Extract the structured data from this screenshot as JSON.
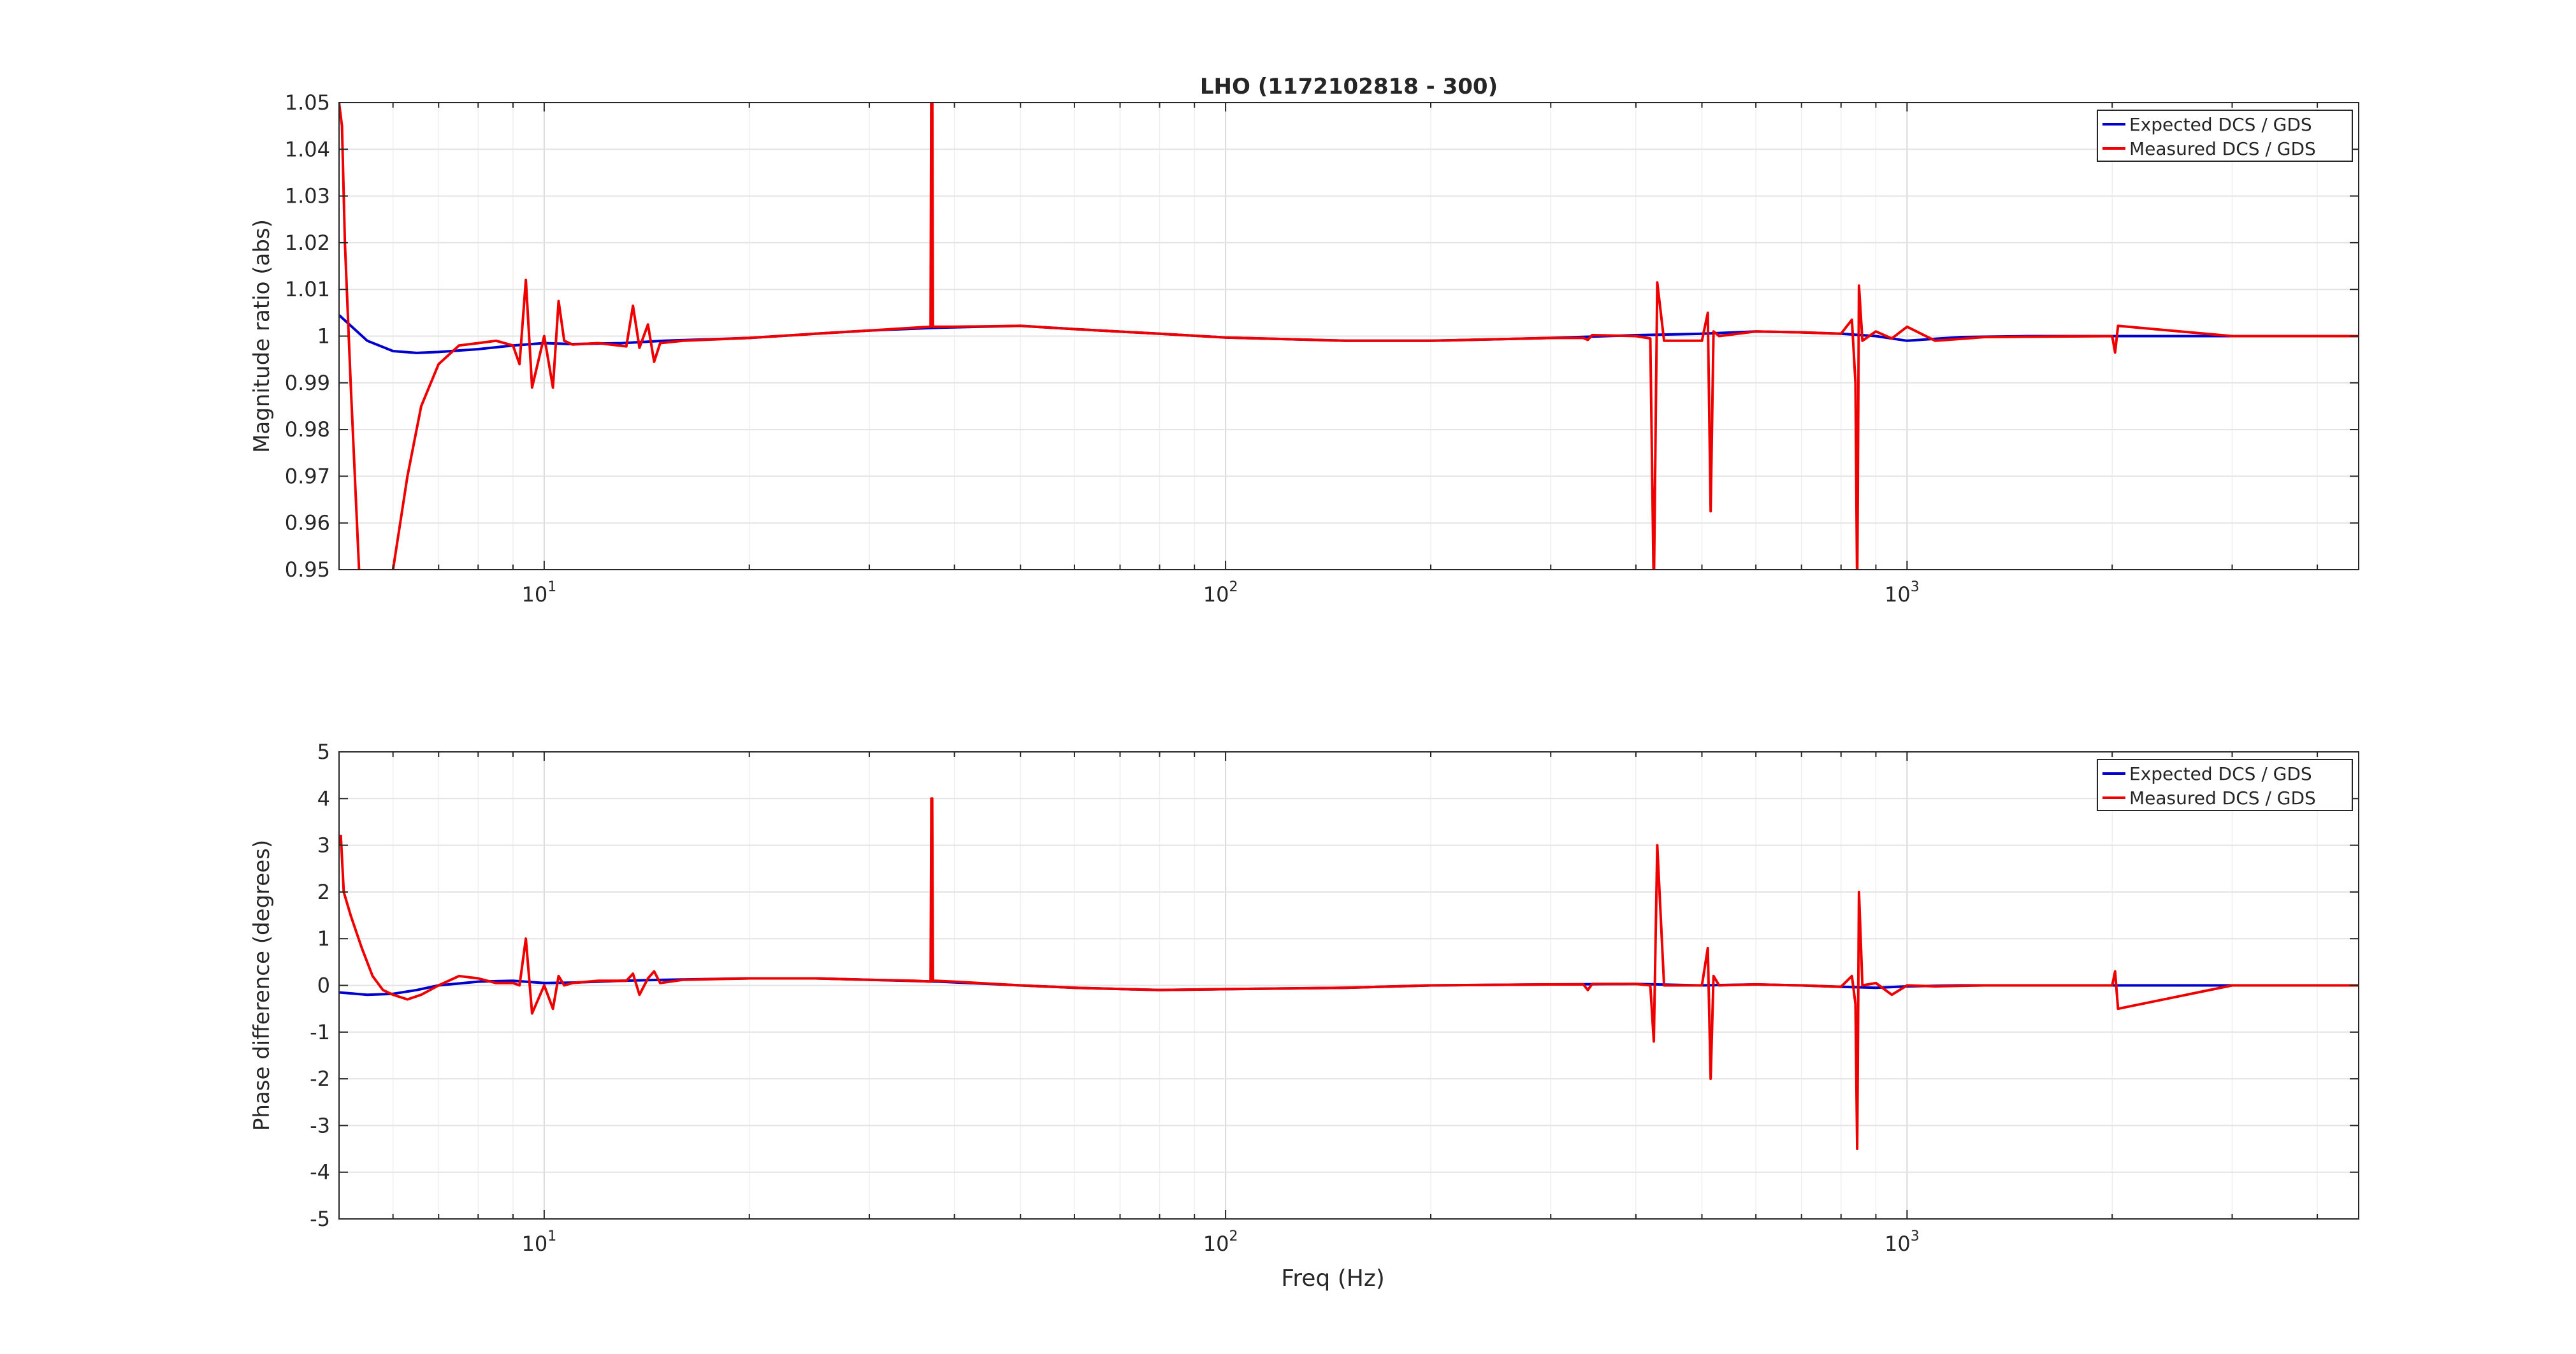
{
  "chart_data": [
    {
      "type": "line",
      "title": "LHO (1172102818 - 300)",
      "xlabel": "",
      "ylabel": "Magnitude ratio (abs)",
      "xscale": "log",
      "xlim": [
        5,
        4600
      ],
      "ylim": [
        0.95,
        1.05
      ],
      "yticks": [
        "0.95",
        "0.96",
        "0.97",
        "0.98",
        "0.99",
        "1",
        "1.01",
        "1.02",
        "1.03",
        "1.04",
        "1.05"
      ],
      "xticks": [
        {
          "base": "10",
          "exp": "1"
        },
        {
          "base": "10",
          "exp": "2"
        },
        {
          "base": "10",
          "exp": "3"
        }
      ],
      "grid": true,
      "legend_placement": "top-right",
      "legend": [
        "Expected DCS / GDS",
        "Measured DCS / GDS"
      ],
      "series": [
        {
          "name": "Expected DCS / GDS",
          "color": "#0000cc",
          "x": [
            5,
            5.5,
            6,
            6.5,
            7,
            8,
            9,
            10,
            11,
            13,
            15,
            20,
            25,
            30,
            38,
            50,
            60,
            80,
            100,
            150,
            200,
            300,
            400,
            500,
            600,
            700,
            800,
            900,
            1000,
            1200,
            1500,
            2000,
            3000,
            4600
          ],
          "y": [
            1.0045,
            0.999,
            0.9968,
            0.9964,
            0.9966,
            0.9972,
            0.998,
            0.9985,
            0.9983,
            0.9985,
            0.999,
            0.9996,
            1.0005,
            1.0012,
            1.0018,
            1.0022,
            1.0015,
            1.0005,
            0.9997,
            0.999,
            0.999,
            0.9996,
            1.0002,
            1.0005,
            1.001,
            1.0008,
            1.0005,
            1.0,
            0.999,
            0.9998,
            1.0,
            1.0,
            1.0,
            1.0
          ]
        },
        {
          "name": "Measured DCS / GDS",
          "color": "#ee0000",
          "x": [
            5,
            5.05,
            5.1,
            5.2,
            5.35,
            5.6,
            5.8,
            6.0,
            6.3,
            6.6,
            7,
            7.5,
            8,
            8.5,
            9.0,
            9.2,
            9.4,
            9.6,
            10.0,
            10.3,
            10.5,
            10.7,
            11,
            12,
            13.2,
            13.5,
            13.8,
            14.2,
            14.5,
            14.8,
            16,
            20,
            25,
            30,
            35,
            36.9,
            37.0,
            37.1,
            37.2,
            37.5,
            40,
            50,
            60,
            80,
            100,
            150,
            200,
            300,
            335,
            340,
            345,
            400,
            420,
            425,
            430,
            440,
            500,
            510,
            515,
            520,
            530,
            600,
            700,
            800,
            830,
            840,
            845,
            850,
            860,
            900,
            950,
            1000,
            1100,
            1300,
            2000,
            2020,
            2040,
            3000,
            4600
          ],
          "y": [
            1.05,
            1.045,
            1.02,
            0.99,
            0.95,
            0.93,
            0.94,
            0.95,
            0.97,
            0.985,
            0.994,
            0.998,
            0.9985,
            0.999,
            0.998,
            0.994,
            1.012,
            0.989,
            1.0,
            0.989,
            1.0075,
            0.999,
            0.9982,
            0.9985,
            0.9978,
            1.0065,
            0.9975,
            1.0025,
            0.9945,
            0.9985,
            0.999,
            0.9996,
            1.0005,
            1.0012,
            1.0018,
            1.002,
            1.06,
            1.06,
            1.002,
            1.002,
            1.002,
            1.0022,
            1.0015,
            1.0005,
            0.9997,
            0.999,
            0.999,
            0.9996,
            0.9996,
            0.9992,
            1.0002,
            1.0,
            0.9995,
            0.945,
            1.0115,
            0.999,
            0.999,
            1.005,
            0.9625,
            1.001,
            1.0,
            1.001,
            1.0008,
            1.0005,
            1.0035,
            0.99,
            0.945,
            1.0108,
            0.999,
            1.001,
            0.9995,
            1.002,
            0.999,
            0.9998,
            1.0,
            0.9965,
            1.0022,
            1.0,
            1.0
          ]
        }
      ]
    },
    {
      "type": "line",
      "title": "",
      "xlabel": "Freq (Hz)",
      "ylabel": "Phase difference (degrees)",
      "xscale": "log",
      "xlim": [
        5,
        4600
      ],
      "ylim": [
        -5,
        5
      ],
      "yticks": [
        "-5",
        "-4",
        "-3",
        "-2",
        "-1",
        "0",
        "1",
        "2",
        "3",
        "4",
        "5"
      ],
      "xticks": [
        {
          "base": "10",
          "exp": "1"
        },
        {
          "base": "10",
          "exp": "2"
        },
        {
          "base": "10",
          "exp": "3"
        }
      ],
      "grid": true,
      "legend_placement": "top-right",
      "legend": [
        "Expected DCS / GDS",
        "Measured DCS / GDS"
      ],
      "series": [
        {
          "name": "Expected DCS / GDS",
          "color": "#0000cc",
          "x": [
            5,
            5.5,
            6,
            6.5,
            7,
            8,
            9,
            10,
            11,
            13,
            15,
            20,
            25,
            30,
            38,
            50,
            60,
            80,
            100,
            150,
            200,
            300,
            400,
            500,
            600,
            700,
            800,
            900,
            1000,
            1200,
            1500,
            2000,
            3000,
            4600
          ],
          "y": [
            -0.15,
            -0.2,
            -0.18,
            -0.1,
            0.0,
            0.08,
            0.1,
            0.05,
            0.06,
            0.1,
            0.12,
            0.15,
            0.15,
            0.12,
            0.08,
            0.0,
            -0.05,
            -0.1,
            -0.08,
            -0.05,
            0.0,
            0.02,
            0.03,
            0.0,
            0.02,
            0.0,
            -0.03,
            -0.05,
            -0.02,
            0.0,
            0.0,
            0.0,
            0.0,
            0.0
          ]
        },
        {
          "name": "Measured DCS / GDS",
          "color": "#ee0000",
          "x": [
            5,
            5.03,
            5.08,
            5.2,
            5.4,
            5.6,
            5.8,
            6.0,
            6.3,
            6.6,
            7,
            7.5,
            8,
            8.5,
            9.0,
            9.2,
            9.4,
            9.6,
            10.0,
            10.3,
            10.5,
            10.7,
            11,
            12,
            13.2,
            13.5,
            13.8,
            14.2,
            14.5,
            14.8,
            16,
            20,
            25,
            30,
            35,
            36.9,
            37.0,
            37.1,
            37.2,
            37.5,
            40,
            50,
            60,
            80,
            100,
            150,
            200,
            300,
            335,
            340,
            345,
            400,
            420,
            425,
            430,
            440,
            500,
            510,
            515,
            520,
            530,
            600,
            700,
            800,
            830,
            840,
            845,
            850,
            860,
            900,
            950,
            1000,
            1100,
            1300,
            2000,
            2020,
            2040,
            3000,
            4600
          ],
          "y": [
            3.0,
            3.2,
            2.0,
            1.5,
            0.8,
            0.2,
            -0.1,
            -0.2,
            -0.3,
            -0.2,
            0.0,
            0.2,
            0.15,
            0.05,
            0.05,
            0.0,
            1.0,
            -0.6,
            0.0,
            -0.5,
            0.2,
            0.0,
            0.05,
            0.1,
            0.1,
            0.25,
            -0.2,
            0.15,
            0.3,
            0.05,
            0.12,
            0.15,
            0.15,
            0.12,
            0.1,
            0.08,
            4.0,
            4.0,
            0.1,
            0.1,
            0.08,
            0.0,
            -0.05,
            -0.1,
            -0.08,
            -0.05,
            0.0,
            0.02,
            0.02,
            -0.1,
            0.03,
            0.03,
            0.0,
            -1.2,
            3.0,
            0.0,
            0.0,
            0.8,
            -2.0,
            0.2,
            0.0,
            0.02,
            0.0,
            -0.03,
            0.2,
            -0.4,
            -3.5,
            2.0,
            0.0,
            0.05,
            -0.2,
            0.0,
            -0.02,
            0.0,
            0.0,
            0.3,
            -0.5,
            0.0,
            0.0
          ]
        }
      ]
    }
  ]
}
